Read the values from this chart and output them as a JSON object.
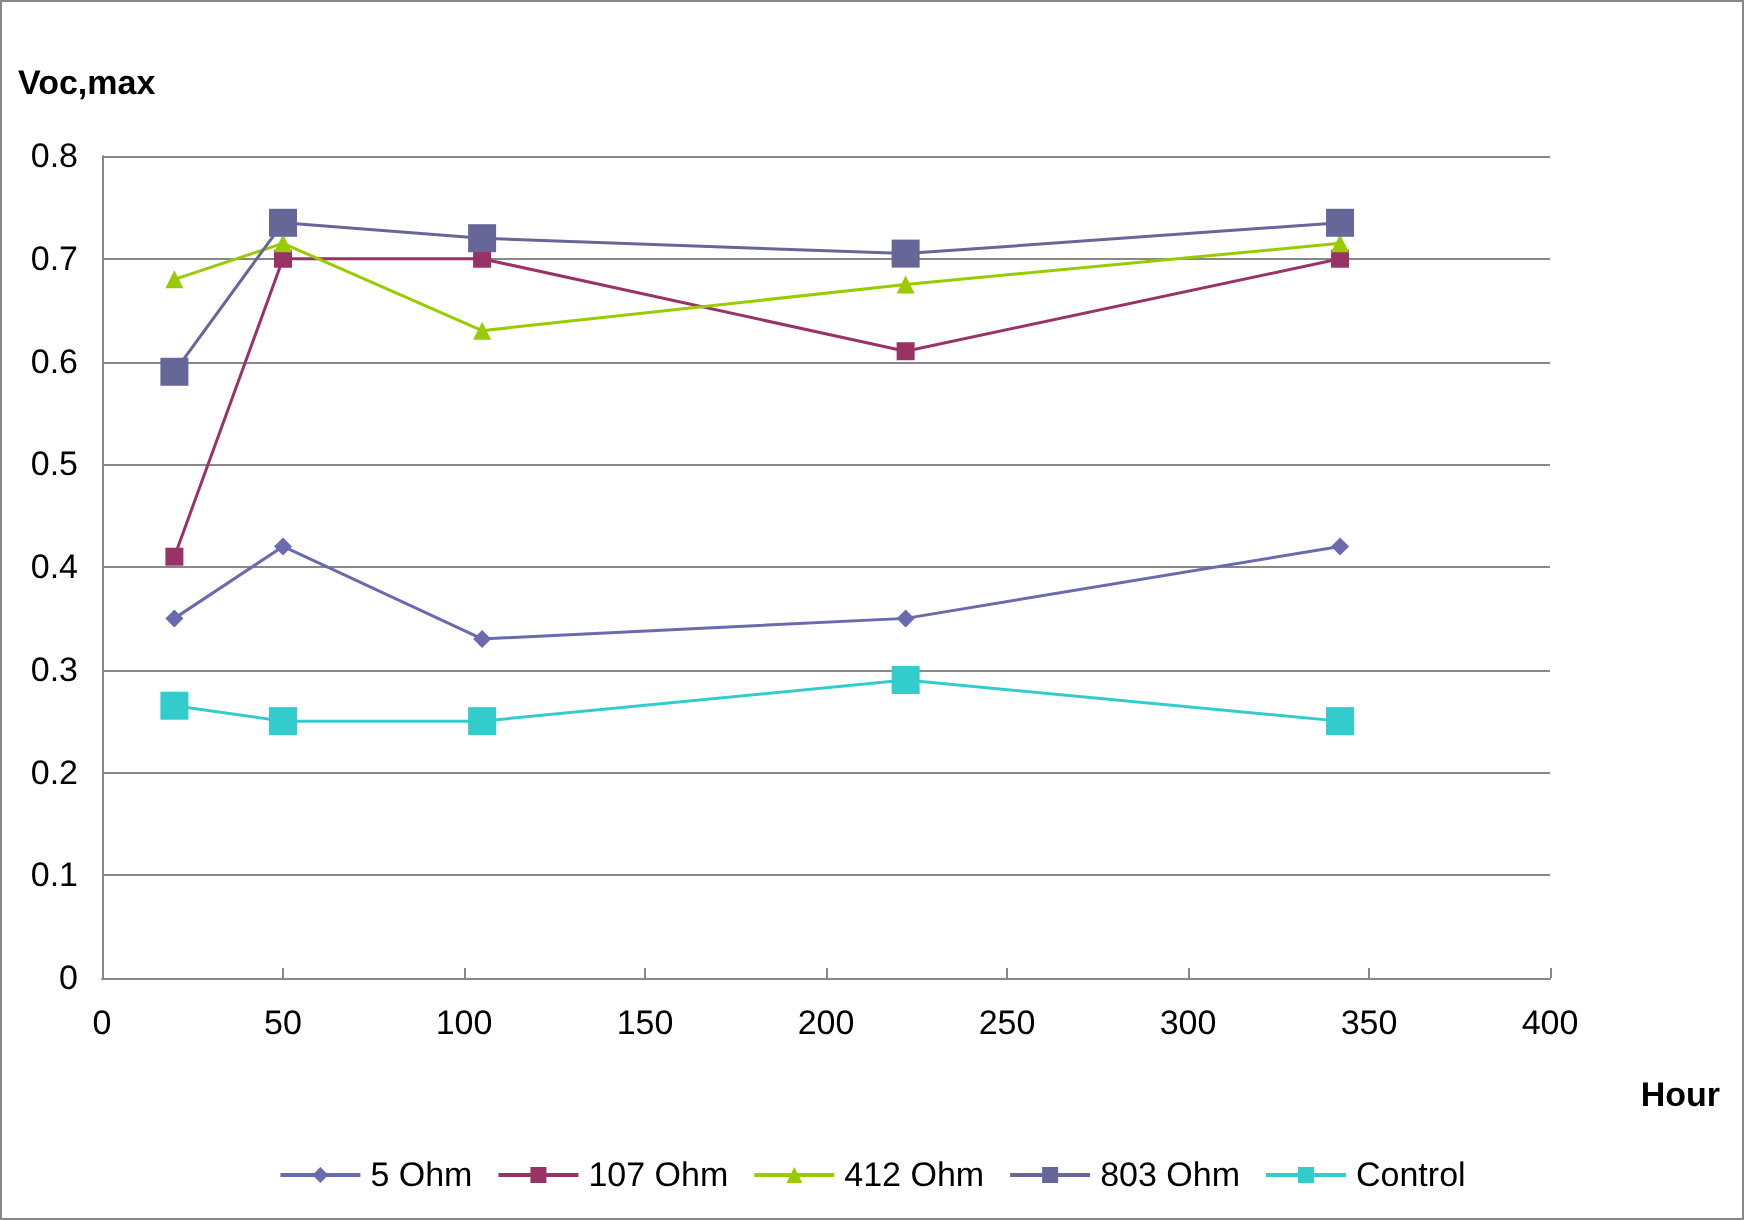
{
  "chart_data": {
    "type": "line",
    "xlabel": "Hour",
    "ylabel": "Voc,max",
    "xlim": [
      0,
      400
    ],
    "xticks": [
      0,
      50,
      100,
      150,
      200,
      250,
      300,
      350,
      400
    ],
    "ylim": [
      0,
      0.8
    ],
    "yticks": [
      0,
      0.1,
      0.2,
      0.3,
      0.4,
      0.5,
      0.6,
      0.7,
      0.8
    ],
    "grid": "y",
    "legend": "bottom",
    "line_style": "solid",
    "x": [
      20,
      50,
      105,
      222,
      342
    ],
    "series": [
      {
        "name": "5 Ohm",
        "color": "#6a6aae",
        "marker": "diamond",
        "values": [
          0.35,
          0.42,
          0.33,
          0.35,
          0.42
        ]
      },
      {
        "name": "107 Ohm",
        "color": "#993366",
        "marker": "square",
        "values": [
          0.41,
          0.7,
          0.7,
          0.61,
          0.7
        ]
      },
      {
        "name": "412 Ohm",
        "color": "#99cc00",
        "marker": "triangle",
        "values": [
          0.68,
          0.715,
          0.63,
          0.675,
          0.715
        ]
      },
      {
        "name": "803 Ohm",
        "color": "#666699",
        "marker": "square",
        "values": [
          0.59,
          0.735,
          0.72,
          0.705,
          0.735
        ]
      },
      {
        "name": "Control",
        "color": "#33cccc",
        "marker": "square",
        "values": [
          0.265,
          0.25,
          0.25,
          0.29,
          0.25
        ]
      }
    ]
  }
}
